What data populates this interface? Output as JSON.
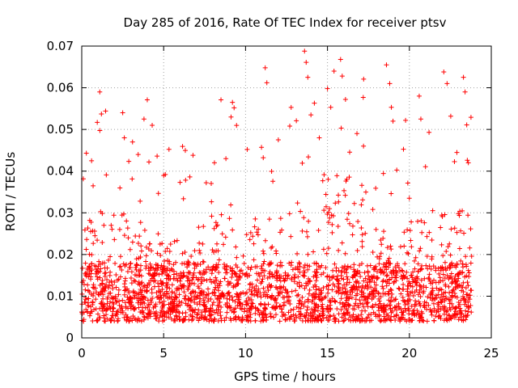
{
  "chart_data": {
    "type": "scatter",
    "title": "Day 285 of 2016, Rate Of TEC Index for receiver ptsv",
    "xlabel": "GPS time / hours",
    "ylabel": "ROTI / TECUs",
    "xlim": [
      0,
      25
    ],
    "ylim": [
      0,
      0.07
    ],
    "xticks": [
      0,
      5,
      10,
      15,
      20,
      25
    ],
    "xtick_labels": [
      "0",
      "5",
      "10",
      "15",
      "20",
      "25"
    ],
    "yticks": [
      0,
      0.01,
      0.02,
      0.03,
      0.04,
      0.05,
      0.06,
      0.07
    ],
    "ytick_labels": [
      "0",
      "0.01",
      "0.02",
      "0.03",
      "0.04",
      "0.05",
      "0.06",
      "0.07"
    ],
    "grid": true,
    "marker": "plus",
    "series": [
      {
        "name": "ROTI",
        "color": "#ff0000",
        "x_range": [
          0,
          23.8
        ],
        "sample_points": [
          [
            0.3,
            0.0236
          ],
          [
            0.6,
            0.0425
          ],
          [
            1.1,
            0.059
          ],
          [
            1.2,
            0.0537
          ],
          [
            1.5,
            0.0391
          ],
          [
            2.5,
            0.054
          ],
          [
            2.6,
            0.048
          ],
          [
            3.1,
            0.047
          ],
          [
            3.8,
            0.0525
          ],
          [
            4.0,
            0.0571
          ],
          [
            4.3,
            0.051
          ],
          [
            4.6,
            0.0436
          ],
          [
            5.1,
            0.0392
          ],
          [
            6.0,
            0.0373
          ],
          [
            6.6,
            0.0386
          ],
          [
            7.6,
            0.0372
          ],
          [
            8.1,
            0.042
          ],
          [
            8.5,
            0.0571
          ],
          [
            8.8,
            0.043
          ],
          [
            9.2,
            0.0565
          ],
          [
            9.3,
            0.0552
          ],
          [
            10.1,
            0.0452
          ],
          [
            11.2,
            0.0648
          ],
          [
            11.3,
            0.0612
          ],
          [
            12.0,
            0.0475
          ],
          [
            12.7,
            0.0508
          ],
          [
            13.1,
            0.0521
          ],
          [
            13.6,
            0.0688
          ],
          [
            13.7,
            0.0661
          ],
          [
            13.8,
            0.0625
          ],
          [
            14.2,
            0.0563
          ],
          [
            14.5,
            0.048
          ],
          [
            15.0,
            0.0598
          ],
          [
            15.2,
            0.0553
          ],
          [
            15.4,
            0.064
          ],
          [
            15.8,
            0.0668
          ],
          [
            15.9,
            0.0628
          ],
          [
            16.1,
            0.0572
          ],
          [
            16.8,
            0.049
          ],
          [
            17.2,
            0.046
          ],
          [
            18.6,
            0.0655
          ],
          [
            18.8,
            0.061
          ],
          [
            18.9,
            0.0553
          ],
          [
            19.0,
            0.052
          ],
          [
            20.6,
            0.058
          ],
          [
            20.7,
            0.0525
          ],
          [
            21.2,
            0.0493
          ],
          [
            22.1,
            0.0638
          ],
          [
            22.3,
            0.061
          ],
          [
            23.3,
            0.0625
          ],
          [
            23.4,
            0.059
          ],
          [
            23.5,
            0.0511
          ],
          [
            23.6,
            0.042
          ]
        ]
      }
    ]
  }
}
